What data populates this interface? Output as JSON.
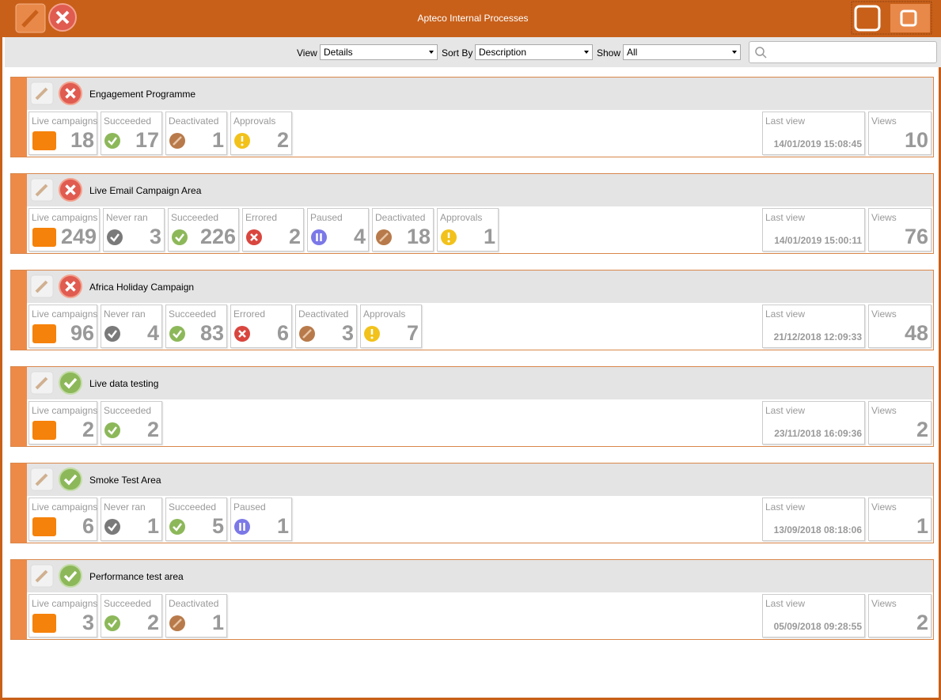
{
  "header": {
    "title": "Apteco Internal Processes"
  },
  "toolbar": {
    "view_label": "View",
    "view_value": "Details",
    "sort_label": "Sort By",
    "sort_value": "Description",
    "show_label": "Show",
    "show_value": "All"
  },
  "areas": [
    {
      "name": "Engagement Programme",
      "status": "error",
      "stats": [
        {
          "label": "Live campaigns",
          "value": 18,
          "icon": "live"
        },
        {
          "label": "Succeeded",
          "value": 17,
          "icon": "success"
        },
        {
          "label": "Deactivated",
          "value": 1,
          "icon": "deactivated"
        },
        {
          "label": "Approvals",
          "value": 2,
          "icon": "approval"
        }
      ],
      "last_view_label": "Last view",
      "last_view": "14/01/2019 15:08:45",
      "views_label": "Views",
      "views": 10
    },
    {
      "name": "Live Email Campaign Area",
      "status": "error",
      "stats": [
        {
          "label": "Live campaigns",
          "value": 249,
          "icon": "live"
        },
        {
          "label": "Never ran",
          "value": 3,
          "icon": "never"
        },
        {
          "label": "Succeeded",
          "value": 226,
          "icon": "success"
        },
        {
          "label": "Errored",
          "value": 2,
          "icon": "error"
        },
        {
          "label": "Paused",
          "value": 4,
          "icon": "paused"
        },
        {
          "label": "Deactivated",
          "value": 18,
          "icon": "deactivated"
        },
        {
          "label": "Approvals",
          "value": 1,
          "icon": "approval"
        }
      ],
      "last_view_label": "Last view",
      "last_view": "14/01/2019 15:00:11",
      "views_label": "Views",
      "views": 76
    },
    {
      "name": "Africa Holiday Campaign",
      "status": "error",
      "stats": [
        {
          "label": "Live campaigns",
          "value": 96,
          "icon": "live"
        },
        {
          "label": "Never ran",
          "value": 4,
          "icon": "never"
        },
        {
          "label": "Succeeded",
          "value": 83,
          "icon": "success"
        },
        {
          "label": "Errored",
          "value": 6,
          "icon": "error"
        },
        {
          "label": "Deactivated",
          "value": 3,
          "icon": "deactivated"
        },
        {
          "label": "Approvals",
          "value": 7,
          "icon": "approval"
        }
      ],
      "last_view_label": "Last view",
      "last_view": "21/12/2018 12:09:33",
      "views_label": "Views",
      "views": 48
    },
    {
      "name": "Live data testing",
      "status": "ok",
      "stats": [
        {
          "label": "Live campaigns",
          "value": 2,
          "icon": "live"
        },
        {
          "label": "Succeeded",
          "value": 2,
          "icon": "success"
        }
      ],
      "last_view_label": "Last view",
      "last_view": "23/11/2018 16:09:36",
      "views_label": "Views",
      "views": 2
    },
    {
      "name": "Smoke Test Area",
      "status": "ok",
      "stats": [
        {
          "label": "Live campaigns",
          "value": 6,
          "icon": "live"
        },
        {
          "label": "Never ran",
          "value": 1,
          "icon": "never"
        },
        {
          "label": "Succeeded",
          "value": 5,
          "icon": "success"
        },
        {
          "label": "Paused",
          "value": 1,
          "icon": "paused"
        }
      ],
      "last_view_label": "Last view",
      "last_view": "13/09/2018 08:18:06",
      "views_label": "Views",
      "views": 1
    },
    {
      "name": "Performance test area",
      "status": "ok",
      "stats": [
        {
          "label": "Live campaigns",
          "value": 3,
          "icon": "live"
        },
        {
          "label": "Succeeded",
          "value": 2,
          "icon": "success"
        },
        {
          "label": "Deactivated",
          "value": 1,
          "icon": "deactivated"
        }
      ],
      "last_view_label": "Last view",
      "last_view": "05/09/2018 09:28:55",
      "views_label": "Views",
      "views": 2
    }
  ]
}
